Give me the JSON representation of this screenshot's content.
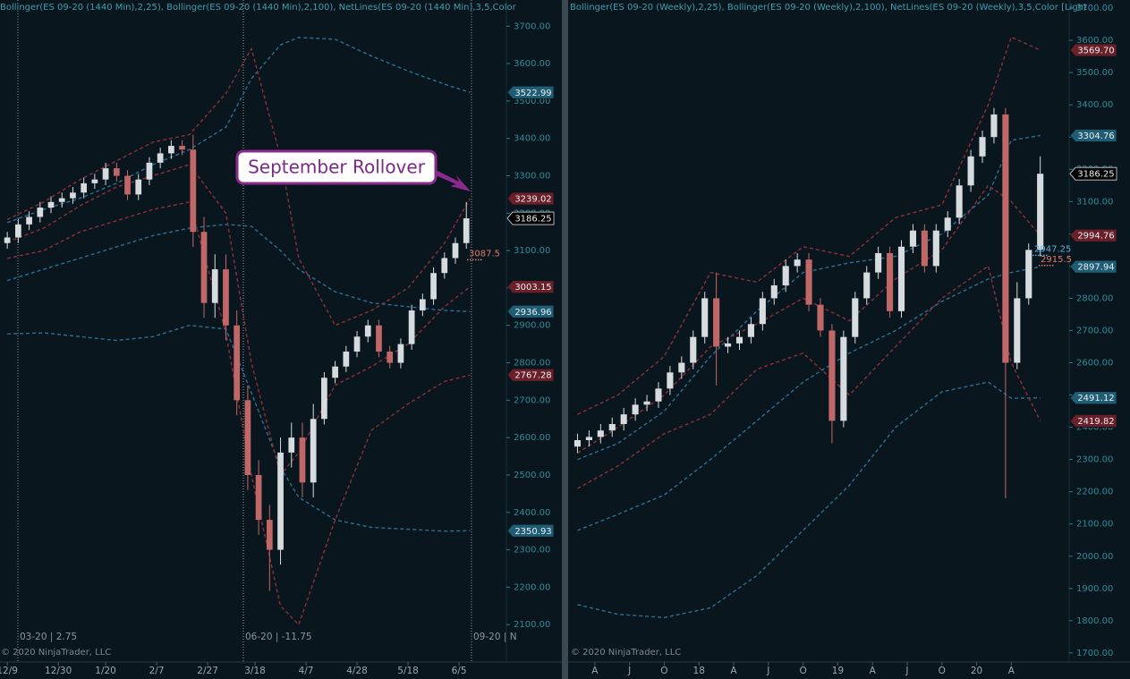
{
  "chart_data": [
    {
      "type": "candlestick",
      "title": "Bollinger(ES 09-20 (1440 Min),2,25), Bollinger(ES 09-20 (1440 Min),2,100), NetLines(ES 09-20 (1440 Min),3,5,Color",
      "annotation": "September Rollover",
      "copyright": "© 2020 NinjaTrader, LLC",
      "rollover_labels": [
        "03-20 | 2.75",
        "06-20 | -11.75",
        "09-20 | N"
      ],
      "xlim": [
        -2,
        137
      ],
      "ylim": [
        2000,
        3770
      ],
      "xticks": [
        {
          "value": 0,
          "label": "12/9"
        },
        {
          "value": 14,
          "label": "12/30"
        },
        {
          "value": 27,
          "label": "1/20"
        },
        {
          "value": 41,
          "label": "2/7"
        },
        {
          "value": 55,
          "label": "2/27"
        },
        {
          "value": 68,
          "label": "3/18"
        },
        {
          "value": 82,
          "label": "4/7"
        },
        {
          "value": 96,
          "label": "4/28"
        },
        {
          "value": 110,
          "label": "5/18"
        },
        {
          "value": 124,
          "label": "6/5"
        }
      ],
      "yticks": [
        {
          "value": 2100,
          "label": "2100.00"
        },
        {
          "value": 2200,
          "label": "2200.00"
        },
        {
          "value": 2300,
          "label": "2300.00"
        },
        {
          "value": 2400,
          "label": "2400.00"
        },
        {
          "value": 2500,
          "label": "2500.00"
        },
        {
          "value": 2600,
          "label": "2600.00"
        },
        {
          "value": 2700,
          "label": "2700.00"
        },
        {
          "value": 2800,
          "label": "2800.00"
        },
        {
          "value": 2900,
          "label": "2900.00"
        },
        {
          "value": 3000,
          "label": "3000.00"
        },
        {
          "value": 3100,
          "label": "3100.00"
        },
        {
          "value": 3200,
          "label": "3200.00"
        },
        {
          "value": 3300,
          "label": "3300.00"
        },
        {
          "value": 3400,
          "label": "3400.00"
        },
        {
          "value": 3500,
          "label": "3500.00"
        },
        {
          "value": 3600,
          "label": "3600.00"
        },
        {
          "value": 3700,
          "label": "3700.00"
        }
      ],
      "x": [
        0,
        3,
        6,
        9,
        12,
        15,
        18,
        21,
        24,
        27,
        30,
        33,
        36,
        39,
        42,
        45,
        48,
        51,
        54,
        57,
        60,
        63,
        66,
        69,
        72,
        75,
        78,
        81,
        84,
        87,
        90,
        93,
        96,
        99,
        102,
        105,
        108,
        111,
        114,
        117,
        120,
        123,
        126
      ],
      "open": [
        3120,
        3135,
        3170,
        3190,
        3215,
        3230,
        3240,
        3255,
        3280,
        3290,
        3320,
        3300,
        3250,
        3290,
        3335,
        3360,
        3380,
        3370,
        3150,
        2960,
        3050,
        2900,
        2700,
        2500,
        2380,
        2300,
        2560,
        2600,
        2480,
        2650,
        2760,
        2790,
        2830,
        2870,
        2900,
        2830,
        2800,
        2850,
        2940,
        2970,
        3040,
        3080,
        3120
      ],
      "high": [
        3150,
        3185,
        3205,
        3230,
        3245,
        3255,
        3270,
        3295,
        3305,
        3335,
        3335,
        3315,
        3305,
        3350,
        3375,
        3395,
        3395,
        3410,
        3190,
        3090,
        3090,
        2940,
        2740,
        2540,
        2420,
        2600,
        2640,
        2640,
        2690,
        2775,
        2805,
        2845,
        2885,
        2915,
        2915,
        2845,
        2865,
        2955,
        2985,
        3055,
        3095,
        3135,
        3230
      ],
      "low": [
        3105,
        3120,
        3155,
        3175,
        3200,
        3215,
        3225,
        3240,
        3265,
        3275,
        3285,
        3235,
        3235,
        3275,
        3320,
        3345,
        3355,
        3110,
        2920,
        2920,
        2860,
        2660,
        2460,
        2340,
        2190,
        2260,
        2520,
        2440,
        2440,
        2635,
        2745,
        2775,
        2815,
        2855,
        2815,
        2785,
        2785,
        2835,
        2925,
        2955,
        3025,
        3065,
        3105
      ],
      "close": [
        3135,
        3170,
        3190,
        3215,
        3230,
        3240,
        3255,
        3280,
        3290,
        3320,
        3300,
        3250,
        3290,
        3335,
        3360,
        3380,
        3370,
        3150,
        2960,
        3050,
        2900,
        2700,
        2500,
        2380,
        2300,
        2560,
        2600,
        2480,
        2650,
        2760,
        2790,
        2830,
        2870,
        2900,
        2830,
        2800,
        2850,
        2940,
        2970,
        3040,
        3080,
        3120,
        3186.25
      ],
      "up_color": "#d5dbdf",
      "down_color": "#c06868",
      "band_x": [
        0,
        10,
        20,
        30,
        40,
        50,
        60,
        67,
        75,
        80,
        90,
        100,
        110,
        120,
        127
      ],
      "bands": [
        {
          "color": "#2d6f92",
          "values": [
            3175,
            3210,
            3240,
            3280,
            3330,
            3370,
            3430,
            3560,
            3650,
            3670,
            3665,
            3620,
            3580,
            3545,
            3522.99
          ]
        },
        {
          "color": "#2d6f92",
          "values": [
            3020,
            3050,
            3080,
            3110,
            3140,
            3160,
            3170,
            3165,
            3100,
            3050,
            2990,
            2960,
            2950,
            2940,
            2936.96
          ]
        },
        {
          "color": "#2d6f92",
          "values": [
            2877,
            2880,
            2870,
            2860,
            2870,
            2900,
            2890,
            2720,
            2520,
            2440,
            2380,
            2360,
            2355,
            2350,
            2350.93
          ]
        },
        {
          "color": "#8e2f3a",
          "values": [
            3183,
            3230,
            3290,
            3340,
            3390,
            3410,
            3520,
            3640,
            3350,
            3080,
            2900,
            2940,
            3000,
            3120,
            3239.02
          ]
        },
        {
          "color": "#8e2f3a",
          "values": [
            3123,
            3160,
            3220,
            3270,
            3300,
            3330,
            3200,
            2800,
            2500,
            2560,
            2740,
            2790,
            2850,
            2950,
            3003.15
          ]
        },
        {
          "color": "#8e2f3a",
          "values": [
            3079,
            3100,
            3150,
            3180,
            3210,
            3230,
            2880,
            2500,
            2150,
            2100,
            2380,
            2620,
            2690,
            2750,
            2767.28
          ]
        }
      ],
      "price_markers": [
        {
          "value": 3522.99,
          "label": "3522.99",
          "color": "#1f5d74"
        },
        {
          "value": 3239.02,
          "label": "3239.02",
          "color": "#6a1f29"
        },
        {
          "value": 3186.25,
          "label": "3186.25",
          "color": "#000000"
        },
        {
          "value": 3003.15,
          "label": "3003.15",
          "color": "#6a1f29"
        },
        {
          "value": 2936.96,
          "label": "2936.96",
          "color": "#1f5d74"
        },
        {
          "value": 2767.28,
          "label": "2767.28",
          "color": "#6a1f29"
        },
        {
          "value": 2350.93,
          "label": "2350.93",
          "color": "#1f5d74"
        }
      ],
      "net_lines": [
        {
          "value": 3087.5,
          "color": "#e07a6a"
        }
      ]
    },
    {
      "type": "candlestick",
      "title": "Bollinger(ES 09-20 (Weekly),2,25), Bollinger(ES 09-20 (Weekly),2,100), NetLines(ES 09-20 (Weekly),3,5,Color [Light",
      "copyright": "© 2020 NinjaTrader, LLC",
      "xlim": [
        1,
        44
      ],
      "ylim": [
        1672,
        3725
      ],
      "xticks": [
        {
          "value": 3,
          "label": "A"
        },
        {
          "value": 6,
          "label": "J"
        },
        {
          "value": 9,
          "label": "O"
        },
        {
          "value": 12,
          "label": "18"
        },
        {
          "value": 15,
          "label": "A"
        },
        {
          "value": 18,
          "label": "J"
        },
        {
          "value": 21,
          "label": "O"
        },
        {
          "value": 24,
          "label": "19"
        },
        {
          "value": 27,
          "label": "A"
        },
        {
          "value": 30,
          "label": "J"
        },
        {
          "value": 33,
          "label": "O"
        },
        {
          "value": 36,
          "label": "20"
        },
        {
          "value": 39,
          "label": "A"
        }
      ],
      "yticks": [
        {
          "value": 1700,
          "label": "1700.00"
        },
        {
          "value": 1800,
          "label": "1800.00"
        },
        {
          "value": 1900,
          "label": "1900.00"
        },
        {
          "value": 2000,
          "label": "2000.00"
        },
        {
          "value": 2100,
          "label": "2100.00"
        },
        {
          "value": 2200,
          "label": "2200.00"
        },
        {
          "value": 2300,
          "label": "2300.00"
        },
        {
          "value": 2400,
          "label": "2400.00"
        },
        {
          "value": 2500,
          "label": "2500.00"
        },
        {
          "value": 2600,
          "label": "2600.00"
        },
        {
          "value": 2700,
          "label": "2700.00"
        },
        {
          "value": 2800,
          "label": "2800.00"
        },
        {
          "value": 2900,
          "label": "2900.00"
        },
        {
          "value": 3000,
          "label": "3000.00"
        },
        {
          "value": 3100,
          "label": "3100.00"
        },
        {
          "value": 3200,
          "label": "3200.00"
        },
        {
          "value": 3300,
          "label": "3300.00"
        },
        {
          "value": 3400,
          "label": "3400.00"
        },
        {
          "value": 3500,
          "label": "3500.00"
        },
        {
          "value": 3600,
          "label": "3600.00"
        },
        {
          "value": 3700,
          "label": "3700.00"
        }
      ],
      "x": [
        1.5,
        2.5,
        3.5,
        4.5,
        5.5,
        6.5,
        7.5,
        8.5,
        9.5,
        10.5,
        11.5,
        12.5,
        13.5,
        14.5,
        15.5,
        16.5,
        17.5,
        18.5,
        19.5,
        20.5,
        21.5,
        22.5,
        23.5,
        24.5,
        25.5,
        26.5,
        27.5,
        28.5,
        29.5,
        30.5,
        31.5,
        32.5,
        33.5,
        34.5,
        35.5,
        36.5,
        37.5,
        38.5,
        39.5,
        40.5,
        41.5
      ],
      "open": [
        2340,
        2360,
        2370,
        2390,
        2410,
        2440,
        2470,
        2480,
        2520,
        2570,
        2600,
        2680,
        2800,
        2650,
        2660,
        2680,
        2720,
        2800,
        2840,
        2900,
        2920,
        2780,
        2700,
        2420,
        2680,
        2800,
        2880,
        2940,
        2760,
        2960,
        3010,
        2900,
        3010,
        3050,
        3150,
        3240,
        3300,
        3370,
        2600,
        2800,
        2950
      ],
      "high": [
        2380,
        2390,
        2410,
        2430,
        2460,
        2490,
        2500,
        2540,
        2590,
        2620,
        2700,
        2820,
        2880,
        2680,
        2700,
        2740,
        2820,
        2860,
        2920,
        2940,
        2940,
        2800,
        2720,
        2700,
        2820,
        2900,
        2960,
        2960,
        2980,
        3030,
        3030,
        3030,
        3070,
        3170,
        3260,
        3320,
        3390,
        3390,
        2850,
        2970,
        3240
      ],
      "low": [
        2320,
        2340,
        2350,
        2370,
        2390,
        2420,
        2450,
        2460,
        2500,
        2550,
        2580,
        2660,
        2530,
        2630,
        2640,
        2660,
        2700,
        2780,
        2820,
        2880,
        2760,
        2680,
        2350,
        2400,
        2660,
        2780,
        2860,
        2740,
        2740,
        2940,
        2880,
        2880,
        2990,
        3030,
        3130,
        3220,
        3280,
        2180,
        2580,
        2780,
        2930
      ],
      "close": [
        2360,
        2370,
        2390,
        2410,
        2440,
        2470,
        2480,
        2520,
        2570,
        2600,
        2680,
        2800,
        2650,
        2660,
        2680,
        2720,
        2800,
        2840,
        2900,
        2920,
        2780,
        2700,
        2420,
        2680,
        2800,
        2880,
        2940,
        2760,
        2960,
        3010,
        2900,
        3010,
        3050,
        3150,
        3240,
        3300,
        3370,
        2600,
        2800,
        2950,
        3186.25
      ],
      "up_color": "#d5dbdf",
      "down_color": "#c06868",
      "band_x": [
        1.5,
        5,
        9,
        13,
        17,
        21,
        25,
        29,
        33,
        37,
        39,
        41.5
      ],
      "bands": [
        {
          "color": "#2d6f92",
          "values": [
            2300,
            2350,
            2450,
            2620,
            2760,
            2880,
            2910,
            2930,
            3000,
            3120,
            3290,
            3304.76
          ]
        },
        {
          "color": "#2d6f92",
          "values": [
            2080,
            2130,
            2190,
            2300,
            2420,
            2540,
            2630,
            2700,
            2790,
            2860,
            2880,
            2897.94
          ]
        },
        {
          "color": "#2d6f92",
          "values": [
            1850,
            1820,
            1810,
            1840,
            1940,
            2080,
            2220,
            2400,
            2510,
            2540,
            2490,
            2491.12
          ]
        },
        {
          "color": "#8e2f3a",
          "values": [
            2440,
            2500,
            2620,
            2880,
            2850,
            2960,
            2930,
            3050,
            3090,
            3400,
            3610,
            3569.7
          ]
        },
        {
          "color": "#8e2f3a",
          "values": [
            2320,
            2400,
            2500,
            2650,
            2720,
            2800,
            2730,
            2860,
            2950,
            3150,
            3100,
            2994.76
          ]
        },
        {
          "color": "#8e2f3a",
          "values": [
            2210,
            2280,
            2380,
            2440,
            2580,
            2630,
            2500,
            2650,
            2800,
            2900,
            2600,
            2419.82
          ]
        }
      ],
      "price_markers": [
        {
          "value": 3569.7,
          "label": "3569.70",
          "color": "#6a1f29"
        },
        {
          "value": 3304.76,
          "label": "3304.76",
          "color": "#1f5d74"
        },
        {
          "value": 3186.25,
          "label": "3186.25",
          "color": "#000000"
        },
        {
          "value": 2994.76,
          "label": "2994.76",
          "color": "#6a1f29"
        },
        {
          "value": 2897.94,
          "label": "2897.94",
          "color": "#1f5d74"
        },
        {
          "value": 2491.12,
          "label": "2491.12",
          "color": "#1f5d74"
        },
        {
          "value": 2419.82,
          "label": "2419.82",
          "color": "#6a1f29"
        }
      ],
      "net_lines": [
        {
          "value": 2947.25,
          "color": "#5ab0d8"
        },
        {
          "value": 2915.5,
          "color": "#e07a6a"
        }
      ]
    }
  ]
}
